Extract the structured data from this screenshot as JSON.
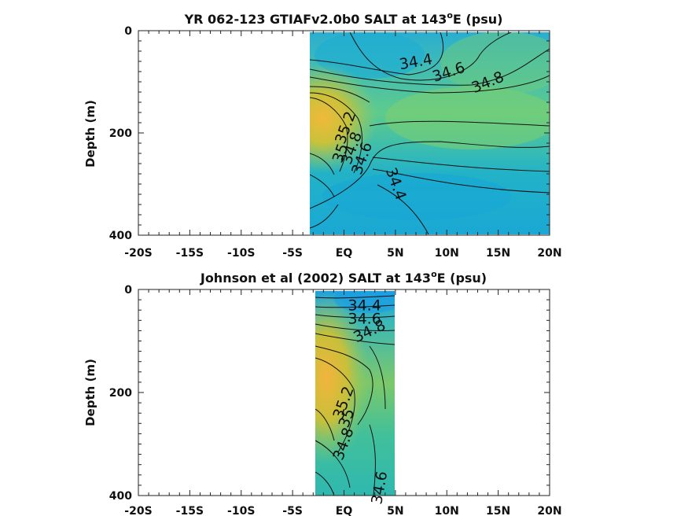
{
  "chart_data": [
    {
      "type": "contour",
      "title": "YR 062-123 GTIAFv2.0b0 SALT at 143",
      "title_sup": "o",
      "title_tail": "E (psu)",
      "ylabel": "Depth (m)",
      "x_ticks": [
        "-20S",
        "-15S",
        "-10S",
        "-5S",
        "EQ",
        "5N",
        "10N",
        "15N",
        "20N"
      ],
      "x_tick_values": [
        -20,
        -15,
        -10,
        -5,
        0,
        5,
        10,
        15,
        20
      ],
      "y_ticks": [
        "0",
        "200",
        "400"
      ],
      "y_tick_values": [
        0,
        200,
        400
      ],
      "xlim": [
        -20,
        20
      ],
      "ylim": [
        400,
        0
      ],
      "data_extent_lat": [
        -3.3,
        20
      ],
      "contour_labels": [
        {
          "text": "34.4",
          "lat": 7.0,
          "depth": 62,
          "angle": -10
        },
        {
          "text": "34.6",
          "lat": 10.2,
          "depth": 82,
          "angle": -18
        },
        {
          "text": "34.8",
          "lat": 14.0,
          "depth": 102,
          "angle": -22
        },
        {
          "text": "35.2",
          "lat": 0.2,
          "depth": 190,
          "angle": -70
        },
        {
          "text": "35",
          "lat": -0.3,
          "depth": 240,
          "angle": -70
        },
        {
          "text": "34.8",
          "lat": 0.8,
          "depth": 230,
          "angle": -70
        },
        {
          "text": "34.6",
          "lat": 1.8,
          "depth": 250,
          "angle": -70
        },
        {
          "text": "34.4",
          "lat": 5.0,
          "depth": 300,
          "angle": 70
        }
      ]
    },
    {
      "type": "contour",
      "title": "Johnson et al (2002) SALT at 143",
      "title_sup": "o",
      "title_tail": "E (psu)",
      "ylabel": "Depth (m)",
      "x_ticks": [
        "-20S",
        "-15S",
        "-10S",
        "-5S",
        "EQ",
        "5N",
        "10N",
        "15N",
        "20N"
      ],
      "x_tick_values": [
        -20,
        -15,
        -10,
        -5,
        0,
        5,
        10,
        15,
        20
      ],
      "y_ticks": [
        "0",
        "200",
        "400"
      ],
      "y_tick_values": [
        0,
        200,
        400
      ],
      "xlim": [
        -20,
        20
      ],
      "ylim": [
        400,
        0
      ],
      "data_extent_lat": [
        -2.8,
        5
      ],
      "contour_labels": [
        {
          "text": "34.4",
          "lat": 2.0,
          "depth": 32,
          "angle": 0
        },
        {
          "text": "34.6",
          "lat": 2.0,
          "depth": 58,
          "angle": 0
        },
        {
          "text": "34.8",
          "lat": 2.5,
          "depth": 82,
          "angle": -25
        },
        {
          "text": "35.2",
          "lat": 0.0,
          "depth": 220,
          "angle": -70
        },
        {
          "text": "35",
          "lat": 0.3,
          "depth": 250,
          "angle": -70
        },
        {
          "text": "34.8",
          "lat": 0.0,
          "depth": 300,
          "angle": -70
        },
        {
          "text": "34.6",
          "lat": 3.5,
          "depth": 385,
          "angle": -80
        }
      ]
    }
  ]
}
